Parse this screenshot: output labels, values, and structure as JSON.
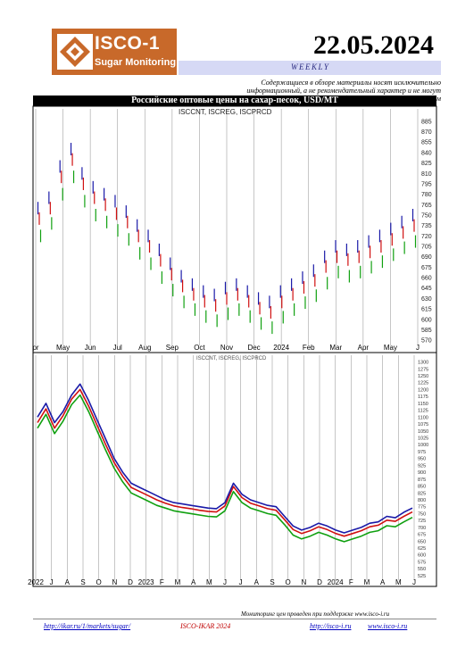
{
  "header": {
    "logo_name": "ISCO-1",
    "logo_sub": "Sugar Monitoring",
    "date": "22.05.2024",
    "frequency": "WEEKLY",
    "disclaimer": "Содержащиеся в обзоре материалы носят исключительно информационный, а не рекомендательный характер и не могут быть переданы третьим лицам"
  },
  "colors": {
    "logo_bg": "#c8692a",
    "title_bg": "#000000",
    "weekly_bg": "#d6d9f5",
    "series_blue": "#1a1aa8",
    "series_red": "#d01010",
    "series_green": "#10a010",
    "gridline": "#a0a0a0"
  },
  "chart_data": [
    {
      "type": "bar",
      "title": "Российские оптовые цены на сахар-песок, USD/MT",
      "legend_text": "ISCCNT, ISCREG, ISCPRCD",
      "x_tick_labels": [
        "pr",
        "May",
        "Jun",
        "Jul",
        "Aug",
        "Sep",
        "Oct",
        "Nov",
        "Dec",
        "2024",
        "Feb",
        "Mar",
        "Apr",
        "May",
        "J"
      ],
      "y_tick_labels": [
        "885",
        "870",
        "855",
        "840",
        "825",
        "810",
        "795",
        "780",
        "765",
        "750",
        "735",
        "720",
        "705",
        "690",
        "675",
        "660",
        "645",
        "630",
        "615",
        "600",
        "585",
        "570"
      ],
      "ylim": [
        565,
        890
      ],
      "series": [
        {
          "name": "ISCCNT",
          "values": [
            760,
            775,
            820,
            845,
            810,
            790,
            780,
            770,
            755,
            735,
            720,
            700,
            680,
            662,
            650,
            640,
            635,
            645,
            650,
            640,
            630,
            625,
            640,
            650,
            660,
            670,
            690,
            705,
            700,
            705,
            712,
            720,
            730,
            740,
            750
          ]
        },
        {
          "name": "ISCREG",
          "values": [
            745,
            760,
            805,
            830,
            795,
            775,
            765,
            752,
            740,
            720,
            705,
            685,
            665,
            648,
            636,
            626,
            620,
            630,
            636,
            626,
            616,
            610,
            625,
            636,
            646,
            656,
            676,
            690,
            686,
            690,
            697,
            705,
            715,
            725,
            735
          ]
        },
        {
          "name": "ISCPRCD",
          "values": [
            720,
            738,
            780,
            805,
            770,
            750,
            740,
            728,
            715,
            695,
            680,
            660,
            642,
            625,
            614,
            604,
            598,
            608,
            614,
            604,
            594,
            588,
            603,
            614,
            624,
            634,
            652,
            668,
            662,
            668,
            675,
            683,
            693,
            703,
            712
          ]
        }
      ]
    },
    {
      "type": "line",
      "legend_text": "ISCCNT, ISCREG, ISCPRCD",
      "x_tick_labels": [
        "2022",
        "J",
        "A",
        "S",
        "O",
        "N",
        "D",
        "2023",
        "F",
        "M",
        "A",
        "M",
        "J",
        "J",
        "A",
        "S",
        "O",
        "N",
        "D",
        "2024",
        "F",
        "M",
        "A",
        "M",
        "J"
      ],
      "y_tick_labels": [
        "1300",
        "1275",
        "1250",
        "1225",
        "1200",
        "1175",
        "1150",
        "1125",
        "1100",
        "1075",
        "1050",
        "1025",
        "1000",
        "975",
        "950",
        "925",
        "900",
        "875",
        "850",
        "825",
        "800",
        "775",
        "750",
        "725",
        "700",
        "675",
        "650",
        "625",
        "600",
        "575",
        "550",
        "525"
      ],
      "ylim": [
        515,
        1305
      ],
      "series": [
        {
          "name": "ISCCNT",
          "values": [
            1100,
            1150,
            1080,
            1120,
            1180,
            1220,
            1160,
            1090,
            1020,
            950,
            900,
            860,
            845,
            830,
            815,
            800,
            790,
            785,
            780,
            775,
            770,
            768,
            790,
            860,
            820,
            800,
            790,
            780,
            775,
            740,
            705,
            690,
            700,
            715,
            705,
            690,
            680,
            690,
            700,
            715,
            720,
            740,
            735,
            755,
            770
          ]
        },
        {
          "name": "ISCREG",
          "values": [
            1080,
            1130,
            1060,
            1105,
            1165,
            1200,
            1140,
            1070,
            1000,
            935,
            885,
            845,
            830,
            815,
            800,
            788,
            778,
            772,
            768,
            762,
            758,
            756,
            778,
            848,
            808,
            788,
            778,
            768,
            762,
            728,
            692,
            678,
            688,
            702,
            692,
            678,
            668,
            678,
            688,
            702,
            708,
            726,
            722,
            740,
            756
          ]
        },
        {
          "name": "ISCPRCD",
          "values": [
            1060,
            1110,
            1040,
            1085,
            1145,
            1180,
            1120,
            1050,
            980,
            915,
            865,
            825,
            810,
            795,
            780,
            770,
            760,
            755,
            750,
            745,
            740,
            738,
            760,
            830,
            790,
            770,
            760,
            750,
            744,
            710,
            672,
            658,
            668,
            682,
            672,
            658,
            648,
            658,
            668,
            682,
            688,
            706,
            702,
            720,
            736
          ]
        }
      ]
    }
  ],
  "footer": {
    "top_note": "Мониторинг цен проведен при поддержке www.isco-i.ru",
    "link_left": "http://ikar.ru/1/markets/sugar/",
    "mid_text": "ISCO-IKAR 2024",
    "link_right1": "http://isco-i.ru",
    "link_right2": "www.isco-i.ru"
  }
}
